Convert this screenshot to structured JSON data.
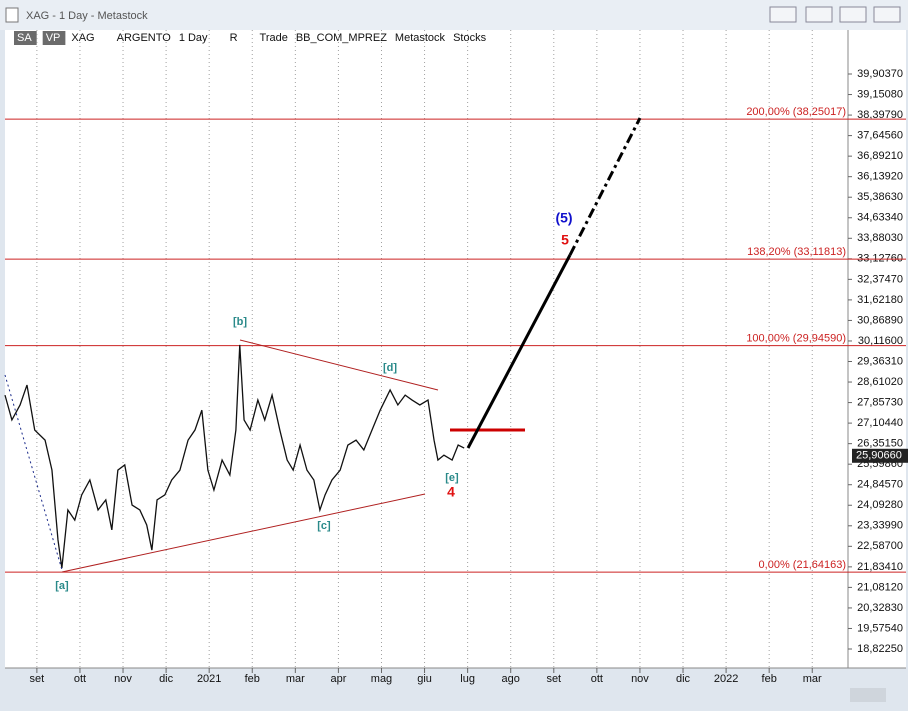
{
  "window_title": "XAG - 1 Day - Metastock",
  "toolbar": [
    "SA",
    "VP",
    "XAG",
    "ARGENTO",
    "1 Day",
    "R",
    "Trade",
    "BB_COM_MPREZ",
    "Metastock",
    "Stocks"
  ],
  "chart_data": {
    "type": "line",
    "x": [
      -0.74,
      -0.58,
      -0.39,
      -0.23,
      -0.05,
      0.19,
      0.35,
      0.49,
      0.58,
      0.72,
      0.88,
      1.04,
      1.23,
      1.42,
      1.6,
      1.74,
      1.88,
      2.04,
      2.21,
      2.39,
      2.55,
      2.67,
      2.79,
      2.97,
      3.13,
      3.32,
      3.51,
      3.67,
      3.83,
      3.97,
      4.11,
      4.3,
      4.48,
      4.62,
      4.71,
      4.81,
      4.95,
      5.13,
      5.29,
      5.46,
      5.64,
      5.81,
      5.95,
      6.11,
      6.27,
      6.43,
      6.57,
      6.69,
      6.85,
      7.04,
      7.22,
      7.41,
      7.59,
      7.78,
      7.97,
      8.2,
      8.38,
      8.55,
      8.71,
      8.89,
      9.08,
      9.22,
      9.31,
      9.45,
      9.64,
      9.78,
      9.92
    ],
    "series": [
      {
        "color": "#111111",
        "values": [
          28.13,
          27.22,
          27.77,
          28.5,
          26.85,
          26.48,
          25.38,
          22.82,
          21.79,
          23.92,
          23.55,
          24.47,
          25.02,
          23.92,
          24.29,
          23.19,
          25.38,
          25.57,
          24.1,
          23.92,
          23.37,
          22.45,
          24.29,
          24.47,
          25.02,
          25.38,
          26.48,
          26.85,
          27.58,
          25.38,
          24.65,
          25.75,
          25.2,
          26.85,
          29.97,
          27.22,
          26.85,
          27.95,
          27.22,
          28.13,
          26.85,
          25.75,
          25.38,
          26.3,
          25.38,
          25.02,
          23.92,
          24.47,
          25.02,
          25.38,
          26.3,
          26.48,
          26.12,
          26.85,
          27.58,
          28.32,
          27.77,
          28.13,
          27.95,
          27.77,
          27.95,
          26.48,
          25.75,
          25.93,
          25.75,
          26.3,
          26.19
        ]
      }
    ],
    "xlim": [
      -0.74,
      18.83
    ],
    "xticks": [
      {
        "value": 0,
        "label": "set"
      },
      {
        "value": 1,
        "label": "ott"
      },
      {
        "value": 2,
        "label": "nov"
      },
      {
        "value": 3,
        "label": "dic"
      },
      {
        "value": 4,
        "label": "2021"
      },
      {
        "value": 5,
        "label": "feb"
      },
      {
        "value": 6,
        "label": "mar"
      },
      {
        "value": 7,
        "label": "apr"
      },
      {
        "value": 8,
        "label": "mag"
      },
      {
        "value": 9,
        "label": "giu"
      },
      {
        "value": 10,
        "label": "lug"
      },
      {
        "value": 11,
        "label": "ago"
      },
      {
        "value": 12,
        "label": "set"
      },
      {
        "value": 13,
        "label": "ott"
      },
      {
        "value": 14,
        "label": "nov"
      },
      {
        "value": 15,
        "label": "dic"
      },
      {
        "value": 16,
        "label": "2022"
      },
      {
        "value": 17,
        "label": "feb"
      },
      {
        "value": 18,
        "label": "mar"
      }
    ],
    "ylim": [
      18.126,
      41.517
    ],
    "yticks": [
      {
        "value": 39.9037,
        "label": "39,90370"
      },
      {
        "value": 39.1508,
        "label": "39,15080"
      },
      {
        "value": 38.3979,
        "label": "38,39790"
      },
      {
        "value": 37.6456,
        "label": "37,64560"
      },
      {
        "value": 36.8921,
        "label": "36,89210"
      },
      {
        "value": 36.1392,
        "label": "36,13920"
      },
      {
        "value": 35.3863,
        "label": "35,38630"
      },
      {
        "value": 34.6334,
        "label": "34,63340"
      },
      {
        "value": 33.8803,
        "label": "33,88030"
      },
      {
        "value": 33.1276,
        "label": "33,12760"
      },
      {
        "value": 32.3747,
        "label": "32,37470"
      },
      {
        "value": 31.6218,
        "label": "31,62180"
      },
      {
        "value": 30.8689,
        "label": "30,86890"
      },
      {
        "value": 30.116,
        "label": "30,11600"
      },
      {
        "value": 29.3631,
        "label": "29,36310"
      },
      {
        "value": 28.6102,
        "label": "28,61020"
      },
      {
        "value": 27.8573,
        "label": "27,85730"
      },
      {
        "value": 27.1044,
        "label": "27,10440"
      },
      {
        "value": 26.3515,
        "label": "26,35150"
      },
      {
        "value": 25.5986,
        "label": "25,59860"
      },
      {
        "value": 24.8457,
        "label": "24,84570"
      },
      {
        "value": 24.0928,
        "label": "24,09280"
      },
      {
        "value": 23.3399,
        "label": "23,33990"
      },
      {
        "value": 22.587,
        "label": "22,58700"
      },
      {
        "value": 21.8341,
        "label": "21,83410"
      },
      {
        "value": 21.0812,
        "label": "21,08120"
      },
      {
        "value": 20.3283,
        "label": "20,32830"
      },
      {
        "value": 19.5754,
        "label": "19,57540"
      },
      {
        "value": 18.8225,
        "label": "18,82250"
      }
    ],
    "last_price": {
      "value": 25.9066,
      "label": "25,90660"
    },
    "levels": [
      {
        "value": 38.25017,
        "label": "200,00% (38,25017)"
      },
      {
        "value": 33.11813,
        "label": "138,20% (33,11813)"
      },
      {
        "value": 29.9459,
        "label": "100,00% (29,94590)"
      },
      {
        "value": 21.64163,
        "label": "0,00% (21,64163)"
      }
    ],
    "level_color": "#cc2222",
    "waves": [
      "[a]",
      "[b]",
      "[c]",
      "[d]",
      "[e]",
      "4",
      "5",
      "(5)"
    ],
    "grid": true
  }
}
